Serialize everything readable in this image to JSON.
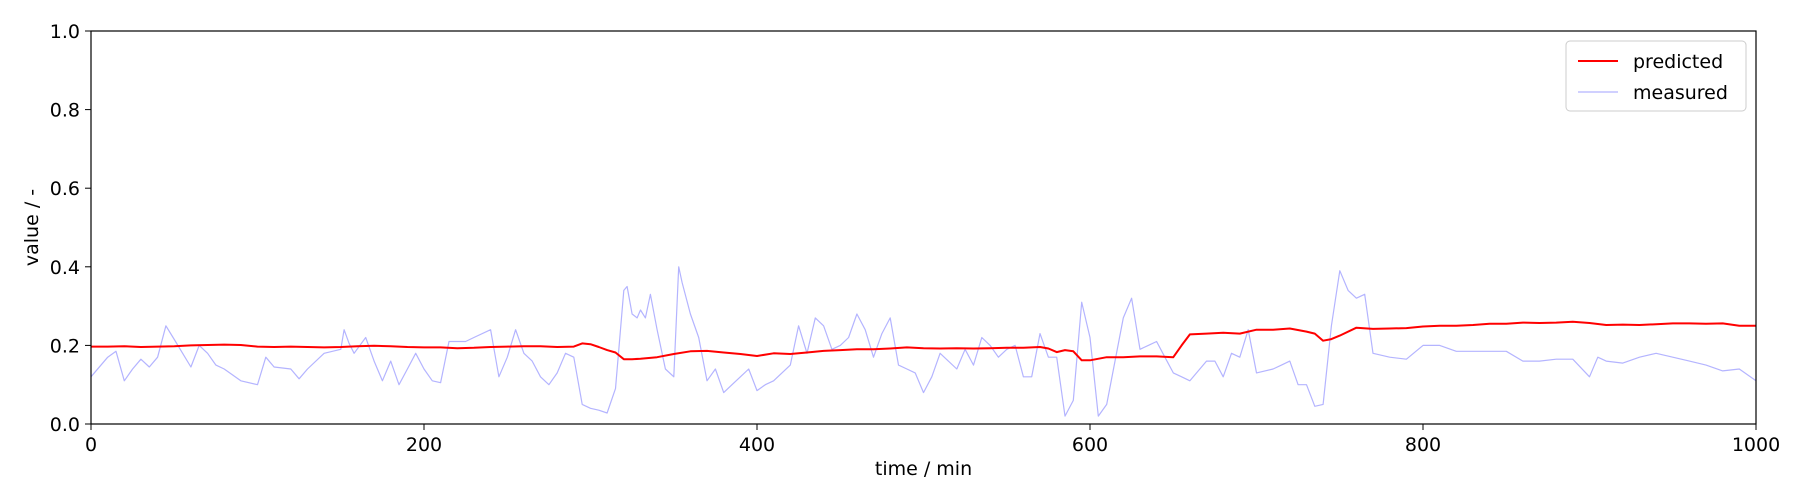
{
  "chart_data": {
    "type": "line",
    "title": "",
    "xlabel": "time / min",
    "ylabel": "value / -",
    "xlim": [
      0,
      1000
    ],
    "ylim": [
      0.0,
      1.0
    ],
    "x_ticks": [
      0,
      200,
      400,
      600,
      800,
      1000
    ],
    "x_tick_labels": [
      "0",
      "200",
      "400",
      "600",
      "800",
      "1000"
    ],
    "y_ticks": [
      0.0,
      0.2,
      0.4,
      0.6,
      0.8,
      1.0
    ],
    "y_tick_labels": [
      "0.0",
      "0.2",
      "0.4",
      "0.6",
      "0.8",
      "1.0"
    ],
    "grid": false,
    "legend_position": "top-right",
    "series": [
      {
        "name": "predicted",
        "color": "#ff0000",
        "x": [
          0,
          10,
          20,
          30,
          40,
          50,
          60,
          70,
          80,
          90,
          100,
          110,
          120,
          130,
          140,
          150,
          160,
          170,
          180,
          190,
          200,
          210,
          220,
          230,
          240,
          250,
          260,
          270,
          280,
          290,
          295,
          300,
          305,
          310,
          315,
          320,
          325,
          330,
          340,
          350,
          360,
          370,
          380,
          390,
          400,
          410,
          420,
          430,
          440,
          450,
          460,
          470,
          480,
          490,
          500,
          510,
          520,
          530,
          540,
          550,
          560,
          570,
          575,
          580,
          585,
          590,
          595,
          600,
          610,
          620,
          630,
          640,
          650,
          655,
          660,
          670,
          680,
          690,
          700,
          710,
          720,
          730,
          735,
          740,
          745,
          750,
          760,
          770,
          780,
          790,
          800,
          810,
          820,
          830,
          840,
          850,
          860,
          870,
          880,
          890,
          900,
          910,
          920,
          930,
          940,
          950,
          960,
          970,
          980,
          990,
          1000
        ],
        "y": [
          0.197,
          0.197,
          0.198,
          0.196,
          0.197,
          0.198,
          0.2,
          0.201,
          0.202,
          0.201,
          0.197,
          0.196,
          0.197,
          0.196,
          0.195,
          0.196,
          0.198,
          0.199,
          0.198,
          0.196,
          0.195,
          0.195,
          0.193,
          0.194,
          0.196,
          0.197,
          0.198,
          0.198,
          0.196,
          0.197,
          0.205,
          0.203,
          0.196,
          0.188,
          0.182,
          0.165,
          0.165,
          0.166,
          0.17,
          0.178,
          0.185,
          0.186,
          0.182,
          0.178,
          0.173,
          0.18,
          0.178,
          0.182,
          0.186,
          0.188,
          0.19,
          0.19,
          0.192,
          0.195,
          0.193,
          0.192,
          0.193,
          0.192,
          0.193,
          0.194,
          0.194,
          0.196,
          0.192,
          0.183,
          0.188,
          0.185,
          0.162,
          0.162,
          0.17,
          0.17,
          0.172,
          0.172,
          0.17,
          0.2,
          0.228,
          0.23,
          0.232,
          0.23,
          0.24,
          0.24,
          0.243,
          0.235,
          0.23,
          0.212,
          0.216,
          0.225,
          0.245,
          0.242,
          0.243,
          0.244,
          0.248,
          0.25,
          0.25,
          0.252,
          0.255,
          0.255,
          0.258,
          0.257,
          0.258,
          0.26,
          0.257,
          0.252,
          0.253,
          0.252,
          0.254,
          0.256,
          0.256,
          0.255,
          0.256,
          0.25,
          0.25
        ]
      },
      {
        "name": "measured",
        "color": "#b4b4ff",
        "x": [
          0,
          10,
          15,
          20,
          25,
          30,
          35,
          40,
          45,
          50,
          60,
          65,
          70,
          75,
          80,
          90,
          100,
          105,
          110,
          120,
          125,
          130,
          140,
          150,
          152,
          155,
          158,
          165,
          170,
          175,
          180,
          185,
          190,
          195,
          200,
          205,
          210,
          215,
          220,
          225,
          230,
          240,
          245,
          250,
          255,
          260,
          265,
          270,
          275,
          280,
          285,
          290,
          295,
          300,
          305,
          310,
          315,
          320,
          322,
          325,
          328,
          330,
          333,
          336,
          340,
          345,
          350,
          353,
          355,
          360,
          365,
          370,
          375,
          380,
          385,
          390,
          395,
          400,
          405,
          410,
          420,
          425,
          430,
          435,
          440,
          445,
          450,
          455,
          460,
          465,
          470,
          475,
          480,
          485,
          490,
          495,
          500,
          505,
          510,
          520,
          525,
          530,
          535,
          540,
          545,
          550,
          555,
          560,
          565,
          570,
          575,
          580,
          585,
          590,
          595,
          600,
          605,
          610,
          620,
          625,
          630,
          635,
          640,
          645,
          650,
          655,
          660,
          670,
          675,
          680,
          685,
          690,
          695,
          700,
          710,
          715,
          720,
          725,
          730,
          735,
          740,
          745,
          750,
          755,
          760,
          765,
          770,
          780,
          790,
          800,
          810,
          820,
          830,
          840,
          850,
          860,
          870,
          880,
          890,
          900,
          905,
          910,
          920,
          930,
          940,
          950,
          960,
          970,
          980,
          990,
          1000
        ],
        "y": [
          0.12,
          0.17,
          0.185,
          0.11,
          0.14,
          0.165,
          0.145,
          0.17,
          0.25,
          0.215,
          0.145,
          0.2,
          0.18,
          0.15,
          0.14,
          0.11,
          0.1,
          0.17,
          0.145,
          0.14,
          0.115,
          0.14,
          0.18,
          0.19,
          0.24,
          0.205,
          0.18,
          0.22,
          0.16,
          0.11,
          0.16,
          0.1,
          0.14,
          0.18,
          0.14,
          0.11,
          0.105,
          0.21,
          0.21,
          0.21,
          0.22,
          0.24,
          0.12,
          0.17,
          0.24,
          0.18,
          0.16,
          0.12,
          0.1,
          0.13,
          0.18,
          0.17,
          0.05,
          0.04,
          0.035,
          0.028,
          0.09,
          0.34,
          0.35,
          0.28,
          0.27,
          0.29,
          0.27,
          0.33,
          0.24,
          0.14,
          0.12,
          0.4,
          0.36,
          0.28,
          0.22,
          0.11,
          0.14,
          0.08,
          0.1,
          0.12,
          0.14,
          0.085,
          0.1,
          0.11,
          0.15,
          0.25,
          0.18,
          0.27,
          0.25,
          0.19,
          0.2,
          0.22,
          0.28,
          0.24,
          0.17,
          0.23,
          0.27,
          0.15,
          0.14,
          0.13,
          0.08,
          0.12,
          0.18,
          0.14,
          0.19,
          0.15,
          0.22,
          0.2,
          0.17,
          0.19,
          0.2,
          0.12,
          0.12,
          0.23,
          0.17,
          0.17,
          0.02,
          0.06,
          0.31,
          0.22,
          0.02,
          0.05,
          0.27,
          0.32,
          0.19,
          0.2,
          0.21,
          0.17,
          0.13,
          0.12,
          0.11,
          0.16,
          0.16,
          0.12,
          0.18,
          0.17,
          0.24,
          0.13,
          0.14,
          0.15,
          0.16,
          0.1,
          0.1,
          0.045,
          0.05,
          0.25,
          0.39,
          0.34,
          0.32,
          0.33,
          0.18,
          0.17,
          0.165,
          0.2,
          0.2,
          0.185,
          0.185,
          0.185,
          0.185,
          0.16,
          0.16,
          0.165,
          0.165,
          0.12,
          0.17,
          0.16,
          0.155,
          0.17,
          0.18,
          0.17,
          0.16,
          0.15,
          0.135,
          0.14,
          0.11
        ]
      }
    ]
  }
}
